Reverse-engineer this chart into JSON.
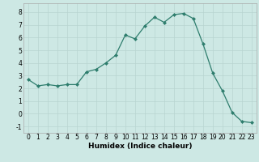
{
  "x": [
    0,
    1,
    2,
    3,
    4,
    5,
    6,
    7,
    8,
    9,
    10,
    11,
    12,
    13,
    14,
    15,
    16,
    17,
    18,
    19,
    20,
    21,
    22,
    23
  ],
  "y": [
    2.7,
    2.2,
    2.3,
    2.2,
    2.3,
    2.3,
    3.3,
    3.5,
    4.0,
    4.6,
    6.2,
    5.9,
    6.9,
    7.6,
    7.2,
    7.8,
    7.9,
    7.5,
    5.5,
    3.2,
    1.8,
    0.1,
    -0.6,
    -0.7
  ],
  "xlabel": "Humidex (Indice chaleur)",
  "xlim": [
    -0.5,
    23.5
  ],
  "ylim": [
    -1.5,
    8.7
  ],
  "xticks": [
    0,
    1,
    2,
    3,
    4,
    5,
    6,
    7,
    8,
    9,
    10,
    11,
    12,
    13,
    14,
    15,
    16,
    17,
    18,
    19,
    20,
    21,
    22,
    23
  ],
  "yticks": [
    -1,
    0,
    1,
    2,
    3,
    4,
    5,
    6,
    7,
    8
  ],
  "line_color": "#2e7d6d",
  "bg_color": "#cde8e4",
  "grid_color": "#b8d4d0",
  "label_fontsize": 6.5,
  "tick_fontsize": 5.5
}
